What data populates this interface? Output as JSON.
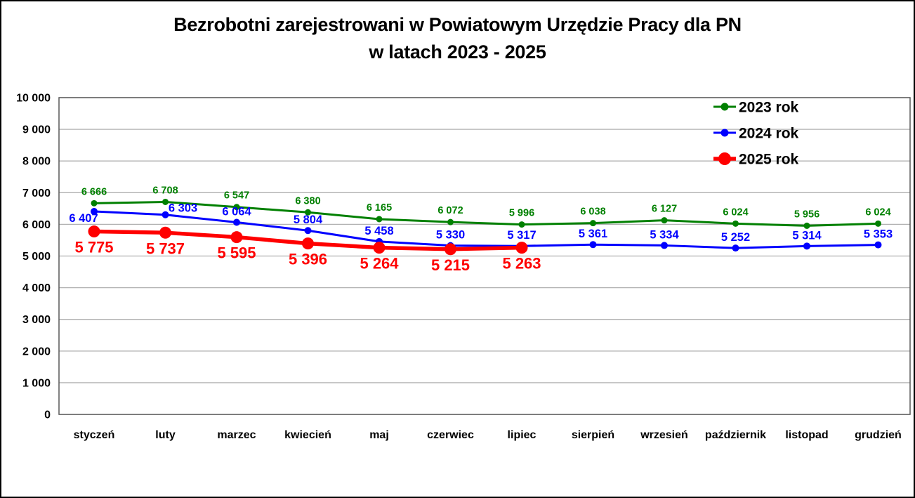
{
  "title": {
    "line1": "Bezrobotni zarejestrowani w Powiatowym Urzędzie Pracy dla PN",
    "line2": "w latach 2023 - 2025"
  },
  "chart_data": {
    "type": "line",
    "title": "Bezrobotni zarejestrowani w Powiatowym Urzędzie Pracy dla PN w latach 2023 - 2025",
    "categories": [
      "styczeń",
      "luty",
      "marzec",
      "kwiecień",
      "maj",
      "czerwiec",
      "lipiec",
      "sierpień",
      "wrzesień",
      "październik",
      "listopad",
      "grudzień"
    ],
    "series": [
      {
        "name": "2023 rok",
        "color": "#008000",
        "values": [
          6666,
          6708,
          6547,
          6380,
          6165,
          6072,
          5996,
          6038,
          6127,
          6024,
          5956,
          6024
        ]
      },
      {
        "name": "2024 rok",
        "color": "#0000ff",
        "values": [
          6407,
          6303,
          6064,
          5804,
          5458,
          5330,
          5317,
          5361,
          5334,
          5252,
          5314,
          5353
        ]
      },
      {
        "name": "2025 rok",
        "color": "#ff0000",
        "values": [
          5775,
          5737,
          5595,
          5396,
          5264,
          5215,
          5263
        ]
      }
    ],
    "ylim": [
      0,
      10000
    ],
    "ytick_step": 1000,
    "ytick_labels": [
      "0",
      "1 000",
      "2 000",
      "3 000",
      "4 000",
      "5 000",
      "6 000",
      "7 000",
      "8 000",
      "9 000",
      "10 000"
    ],
    "grid": true,
    "legend_position": "top-right",
    "data_labels": true,
    "number_format": "space thousands separator"
  },
  "colors": {
    "background": "#ffffff",
    "page_border": "#000000",
    "plot_frame": "#595959",
    "gridline": "#b0b0b0",
    "text": "#000000",
    "series_2023": "#008000",
    "series_2024": "#0000ff",
    "series_2025": "#ff0000"
  }
}
